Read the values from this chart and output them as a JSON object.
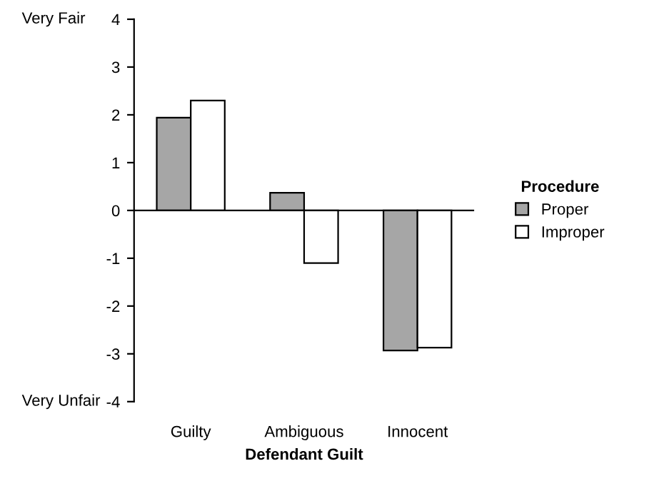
{
  "chart_data": {
    "type": "bar",
    "xlabel": "Defendant Guilt",
    "legend_title": "Procedure",
    "categories": [
      "Guilty",
      "Ambiguous",
      "Innocent"
    ],
    "series": [
      {
        "name": "Proper",
        "color": "#a6a6a6",
        "values": [
          1.94,
          0.37,
          -2.93
        ]
      },
      {
        "name": "Improper",
        "color": "#ffffff",
        "values": [
          2.3,
          -1.1,
          -2.87
        ]
      }
    ],
    "ylim": [
      -4,
      4
    ],
    "yticks": [
      -4,
      -3,
      -2,
      -1,
      0,
      1,
      2,
      3,
      4
    ],
    "ref_lines": [
      {
        "axis": "y",
        "value": 0,
        "color": "#000000"
      }
    ],
    "legend": "right",
    "annotations": [
      "Very Fair",
      "Very Unfair"
    ]
  }
}
